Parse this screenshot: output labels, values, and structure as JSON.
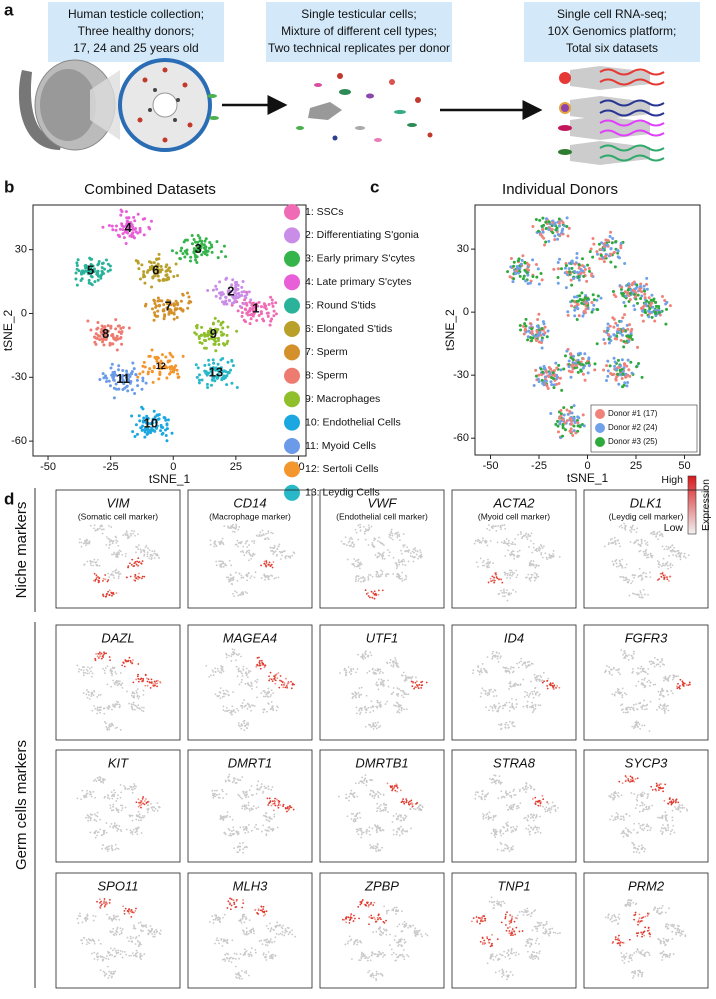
{
  "panel_a": {
    "label": "a",
    "boxes": [
      [
        "Human testicle collection;",
        "Three healthy donors;",
        "17, 24 and 25 years old"
      ],
      [
        "Single testicular cells;",
        "Mixture of different cell types;",
        "Two technical replicates per donor"
      ],
      [
        "Single cell RNA-seq;",
        "10X Genomics platform;",
        "Total six datasets"
      ]
    ]
  },
  "panel_b": {
    "label": "b",
    "title": "Combined Datasets",
    "xlabel": "tSNE_1",
    "ylabel": "tSNE_2",
    "xlim": [
      -56,
      53
    ],
    "ylim": [
      -67,
      51
    ],
    "xticks": [
      -50,
      -25,
      0,
      25,
      50
    ],
    "yticks": [
      -60,
      -30,
      0,
      30
    ],
    "clusters": [
      {
        "label": "1",
        "name": "1: SSCs",
        "color": "#f06bb6",
        "x": 33,
        "y": 2
      },
      {
        "label": "2",
        "name": "2: Differentiating S'gonia",
        "color": "#c98de8",
        "x": 23,
        "y": 10
      },
      {
        "label": "3",
        "name": "3: Early primary S'cytes",
        "color": "#34b44a",
        "x": 10,
        "y": 30
      },
      {
        "label": "4",
        "name": "4: Late primary S'cytes",
        "color": "#e85fd8",
        "x": -18,
        "y": 40
      },
      {
        "label": "5",
        "name": "5: Round S'tids",
        "color": "#2ab39a",
        "x": -33,
        "y": 20
      },
      {
        "label": "6",
        "name": "6: Elongated S'tids",
        "color": "#b8a02a",
        "x": -7,
        "y": 20
      },
      {
        "label": "7",
        "name": "7: Sperm",
        "color": "#d4902a",
        "x": -2,
        "y": 3
      },
      {
        "label": "8",
        "name": "8: Sperm",
        "color": "#ee7b70",
        "x": -27,
        "y": -10
      },
      {
        "label": "9",
        "name": "9: Macrophages",
        "color": "#8fbf2a",
        "x": 16,
        "y": -10
      },
      {
        "label": "10",
        "name": "10: Endothelial Cells",
        "color": "#1ca7e0",
        "x": -9,
        "y": -52
      },
      {
        "label": "11",
        "name": "11: Myoid Cells",
        "color": "#6b9be8",
        "x": -20,
        "y": -31
      },
      {
        "label": "12",
        "name": "12: Sertoli Cells",
        "color": "#f3962d",
        "x": -5,
        "y": -25
      },
      {
        "label": "13",
        "name": "13: Leydig Cells",
        "color": "#28b8c8",
        "x": 17,
        "y": -28
      }
    ]
  },
  "panel_c": {
    "label": "c",
    "title": "Individual Donors",
    "xlabel": "tSNE_1",
    "ylabel": "tSNE_2",
    "xlim": [
      -58,
      58
    ],
    "ylim": [
      -68,
      51
    ],
    "xticks": [
      -50,
      -25,
      0,
      25,
      50
    ],
    "yticks": [
      -60,
      -30,
      0,
      30
    ],
    "series": [
      {
        "name": "Donor #1 (17)",
        "color": "#f0827a"
      },
      {
        "name": "Donor #2 (24)",
        "color": "#6fa0e8"
      },
      {
        "name": "Donor #3 (25)",
        "color": "#2eaa3c"
      }
    ]
  },
  "panel_d": {
    "label": "d",
    "groups": [
      "Niche markers",
      "Germ cells markers"
    ],
    "legend": {
      "high": "High",
      "low": "Low",
      "title": "Expression"
    },
    "panels": [
      {
        "gene": "VIM",
        "note": "(Somatic cell marker)",
        "clusters": [
          13,
          11,
          10,
          9
        ]
      },
      {
        "gene": "CD14",
        "note": "(Macrophage marker)",
        "clusters": [
          9
        ]
      },
      {
        "gene": "VWF",
        "note": "(Endothelial cell marker)",
        "clusters": [
          10
        ]
      },
      {
        "gene": "ACTA2",
        "note": "(Myoid cell marker)",
        "clusters": [
          11
        ]
      },
      {
        "gene": "DLK1",
        "note": "(Leydig cell marker)",
        "clusters": [
          13
        ]
      },
      {
        "gene": "DAZL",
        "clusters": [
          3,
          4,
          2,
          1
        ]
      },
      {
        "gene": "MAGEA4",
        "clusters": [
          3,
          2,
          1
        ]
      },
      {
        "gene": "UTF1",
        "clusters": [
          1
        ]
      },
      {
        "gene": "ID4",
        "clusters": [
          1
        ]
      },
      {
        "gene": "FGFR3",
        "clusters": [
          1
        ]
      },
      {
        "gene": "KIT",
        "clusters": [
          2
        ]
      },
      {
        "gene": "DMRT1",
        "clusters": [
          2,
          1
        ]
      },
      {
        "gene": "DMRTB1",
        "clusters": [
          2,
          3
        ]
      },
      {
        "gene": "STRA8",
        "clusters": [
          2
        ]
      },
      {
        "gene": "SYCP3",
        "clusters": [
          3,
          4,
          2
        ]
      },
      {
        "gene": "SPO11",
        "clusters": [
          4,
          3
        ]
      },
      {
        "gene": "MLH3",
        "clusters": [
          4,
          3
        ]
      },
      {
        "gene": "ZPBP",
        "clusters": [
          4,
          5,
          6
        ]
      },
      {
        "gene": "TNP1",
        "clusters": [
          6,
          7,
          8,
          5
        ]
      },
      {
        "gene": "PRM2",
        "clusters": [
          7,
          8,
          6
        ]
      }
    ]
  }
}
